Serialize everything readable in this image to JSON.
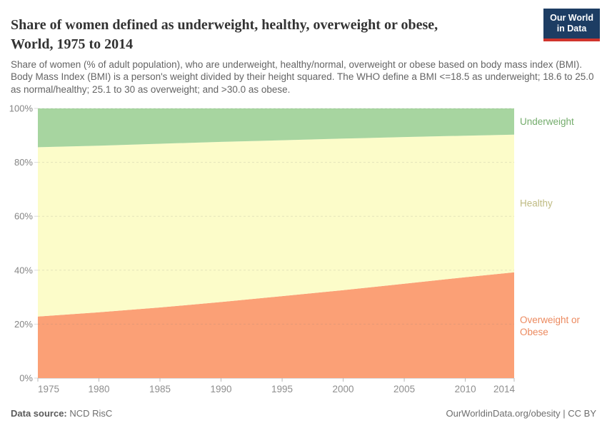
{
  "header": {
    "title_lines": [
      "Share of women defined as underweight, healthy, overweight or obese,",
      "World, 1975 to 2014"
    ],
    "subtitle": "Share of women (% of adult population), who are underweight, healthy/normal, overweight or obese based on body mass index (BMI). Body Mass Index (BMI) is a person's weight divided by their height squared. The WHO define a BMI <=18.5 as underweight; 18.6 to 25.0 as normal/healthy; 25.1 to 30 as overweight; and >30.0 as obese.",
    "logo": {
      "line1": "Our World",
      "line2": "in Data",
      "bg_color": "#1d3d63",
      "accent_color": "#d0342c"
    }
  },
  "footer": {
    "datasource_label": "Data source:",
    "datasource_value": "NCD RisC",
    "credit": "OurWorldinData.org/obesity | CC BY"
  },
  "chart_data": {
    "type": "area",
    "stacked": true,
    "title": "Share of women defined as underweight, healthy, overweight or obese, World, 1975 to 2014",
    "x": [
      1975,
      1980,
      1985,
      1990,
      1995,
      2000,
      2005,
      2010,
      2014
    ],
    "series": [
      {
        "id": "overweight-or-obese",
        "name": "Overweight or Obese",
        "label_lines": [
          "Overweight or",
          "Obese"
        ],
        "values": [
          22.8,
          24.4,
          26.2,
          28.2,
          30.4,
          32.6,
          35.0,
          37.4,
          39.2
        ],
        "fill": "#fba076",
        "label_color": "#ec8a5f"
      },
      {
        "id": "healthy",
        "name": "Healthy",
        "label_lines": [
          "Healthy"
        ],
        "values": [
          62.8,
          61.8,
          60.7,
          59.4,
          57.8,
          56.2,
          54.4,
          52.5,
          51.1
        ],
        "fill": "#fcfcc9",
        "label_color": "#bfbb83"
      },
      {
        "id": "underweight",
        "name": "Underweight",
        "label_lines": [
          "Underweight"
        ],
        "values": [
          14.4,
          13.8,
          13.1,
          12.4,
          11.8,
          11.2,
          10.6,
          10.1,
          9.7
        ],
        "fill": "#a7d5a0",
        "label_color": "#74ac6c"
      }
    ],
    "xlim": [
      1975,
      2014
    ],
    "ylim": [
      0,
      100
    ],
    "xlabel": "",
    "ylabel": "",
    "y_ticks": [
      {
        "value": 0,
        "label": "0%"
      },
      {
        "value": 20,
        "label": "20%"
      },
      {
        "value": 40,
        "label": "40%"
      },
      {
        "value": 60,
        "label": "60%"
      },
      {
        "value": 80,
        "label": "80%"
      },
      {
        "value": 100,
        "label": "100%"
      }
    ],
    "x_ticks": [
      1975,
      1980,
      1985,
      1990,
      1995,
      2000,
      2005,
      2010,
      2014
    ],
    "grid": "horizontal dashed over areas",
    "legend_position": "series labels at right edge of plot"
  }
}
